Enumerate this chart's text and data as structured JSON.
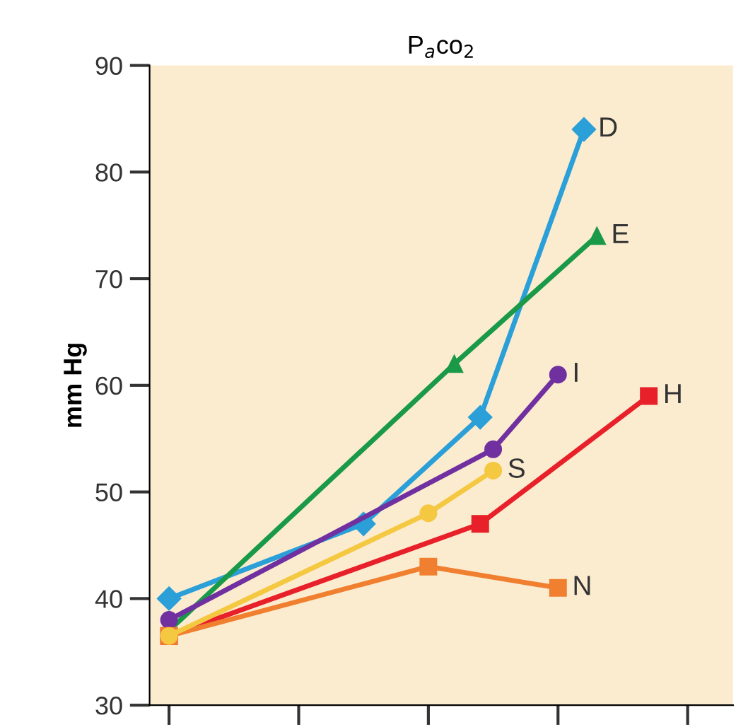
{
  "chart_data": {
    "type": "line",
    "title": "P$_{a}$co$_{2}$",
    "ylabel": "mm Hg",
    "categories": [
      null,
      null,
      null,
      null,
      null,
      null,
      null,
      null,
      null,
      null,
      null,
      null,
      null,
      null,
      null,
      null,
      null,
      null,
      null,
      null,
      null,
      null,
      null,
      null,
      null,
      null,
      null,
      null,
      null,
      null,
      null,
      null,
      null,
      null,
      null,
      null,
      null,
      null,
      null,
      null,
      null,
      null,
      null,
      null,
      null
    ],
    "ylim": [
      30,
      90
    ],
    "yticks": [
      30,
      40,
      50,
      60,
      70,
      80,
      90
    ],
    "grid": false,
    "series": [
      {
        "name": "D",
        "color": "#2a9fd8",
        "marker": "diamond",
        "values": [
          null,
          40,
          null,
          null,
          null,
          null,
          null,
          null,
          null,
          null,
          null,
          null,
          null,
          null,
          null,
          null,
          47,
          null,
          null,
          null,
          null,
          null,
          null,
          null,
          null,
          57,
          null,
          null,
          null,
          null,
          null,
          null,
          null,
          84,
          null,
          null,
          null,
          null,
          null,
          null,
          null,
          null,
          null,
          null,
          null
        ]
      },
      {
        "name": "E",
        "color": "#1a9a48",
        "marker": "triangle",
        "values": [
          null,
          37,
          null,
          null,
          null,
          null,
          null,
          null,
          null,
          null,
          null,
          null,
          null,
          null,
          null,
          null,
          null,
          null,
          null,
          null,
          null,
          null,
          null,
          62,
          null,
          null,
          null,
          null,
          null,
          null,
          null,
          null,
          null,
          null,
          74,
          null,
          null,
          null,
          null,
          null,
          null,
          null,
          null,
          null,
          null
        ]
      },
      {
        "name": "I",
        "color": "#7030a0",
        "marker": "circle",
        "values": [
          null,
          38,
          null,
          null,
          null,
          null,
          null,
          null,
          null,
          null,
          null,
          null,
          null,
          null,
          null,
          null,
          null,
          null,
          null,
          null,
          null,
          null,
          null,
          null,
          null,
          null,
          54,
          null,
          null,
          null,
          null,
          61,
          null,
          null,
          null,
          null,
          null,
          null,
          null,
          null,
          null,
          null,
          null,
          null,
          null
        ]
      },
      {
        "name": "H",
        "color": "#e8202a",
        "marker": "square",
        "values": [
          null,
          36.5,
          null,
          null,
          null,
          null,
          null,
          null,
          null,
          null,
          null,
          null,
          null,
          null,
          null,
          null,
          null,
          null,
          null,
          null,
          null,
          null,
          null,
          null,
          null,
          47,
          null,
          null,
          null,
          null,
          null,
          null,
          null,
          null,
          null,
          null,
          null,
          null,
          59,
          null,
          null,
          null,
          null,
          null,
          null
        ]
      },
      {
        "name": "N",
        "color": "#f07f30",
        "marker": "square",
        "values": [
          null,
          36.5,
          null,
          null,
          null,
          null,
          null,
          null,
          null,
          null,
          null,
          null,
          null,
          null,
          null,
          null,
          null,
          null,
          null,
          null,
          null,
          43,
          null,
          null,
          null,
          null,
          null,
          null,
          null,
          null,
          null,
          41,
          null,
          null,
          null,
          null,
          null,
          null,
          null,
          null,
          null,
          null,
          null,
          null,
          null
        ]
      },
      {
        "name": "S",
        "color": "#f5c842",
        "marker": "circle",
        "values": [
          null,
          36.5,
          null,
          null,
          null,
          null,
          null,
          null,
          null,
          null,
          null,
          null,
          null,
          null,
          null,
          null,
          null,
          null,
          null,
          null,
          null,
          48,
          null,
          null,
          null,
          null,
          52,
          null,
          null,
          null,
          null,
          null,
          null,
          null,
          null,
          null,
          null,
          null,
          null,
          null,
          null,
          null,
          null,
          null,
          null
        ]
      }
    ]
  }
}
